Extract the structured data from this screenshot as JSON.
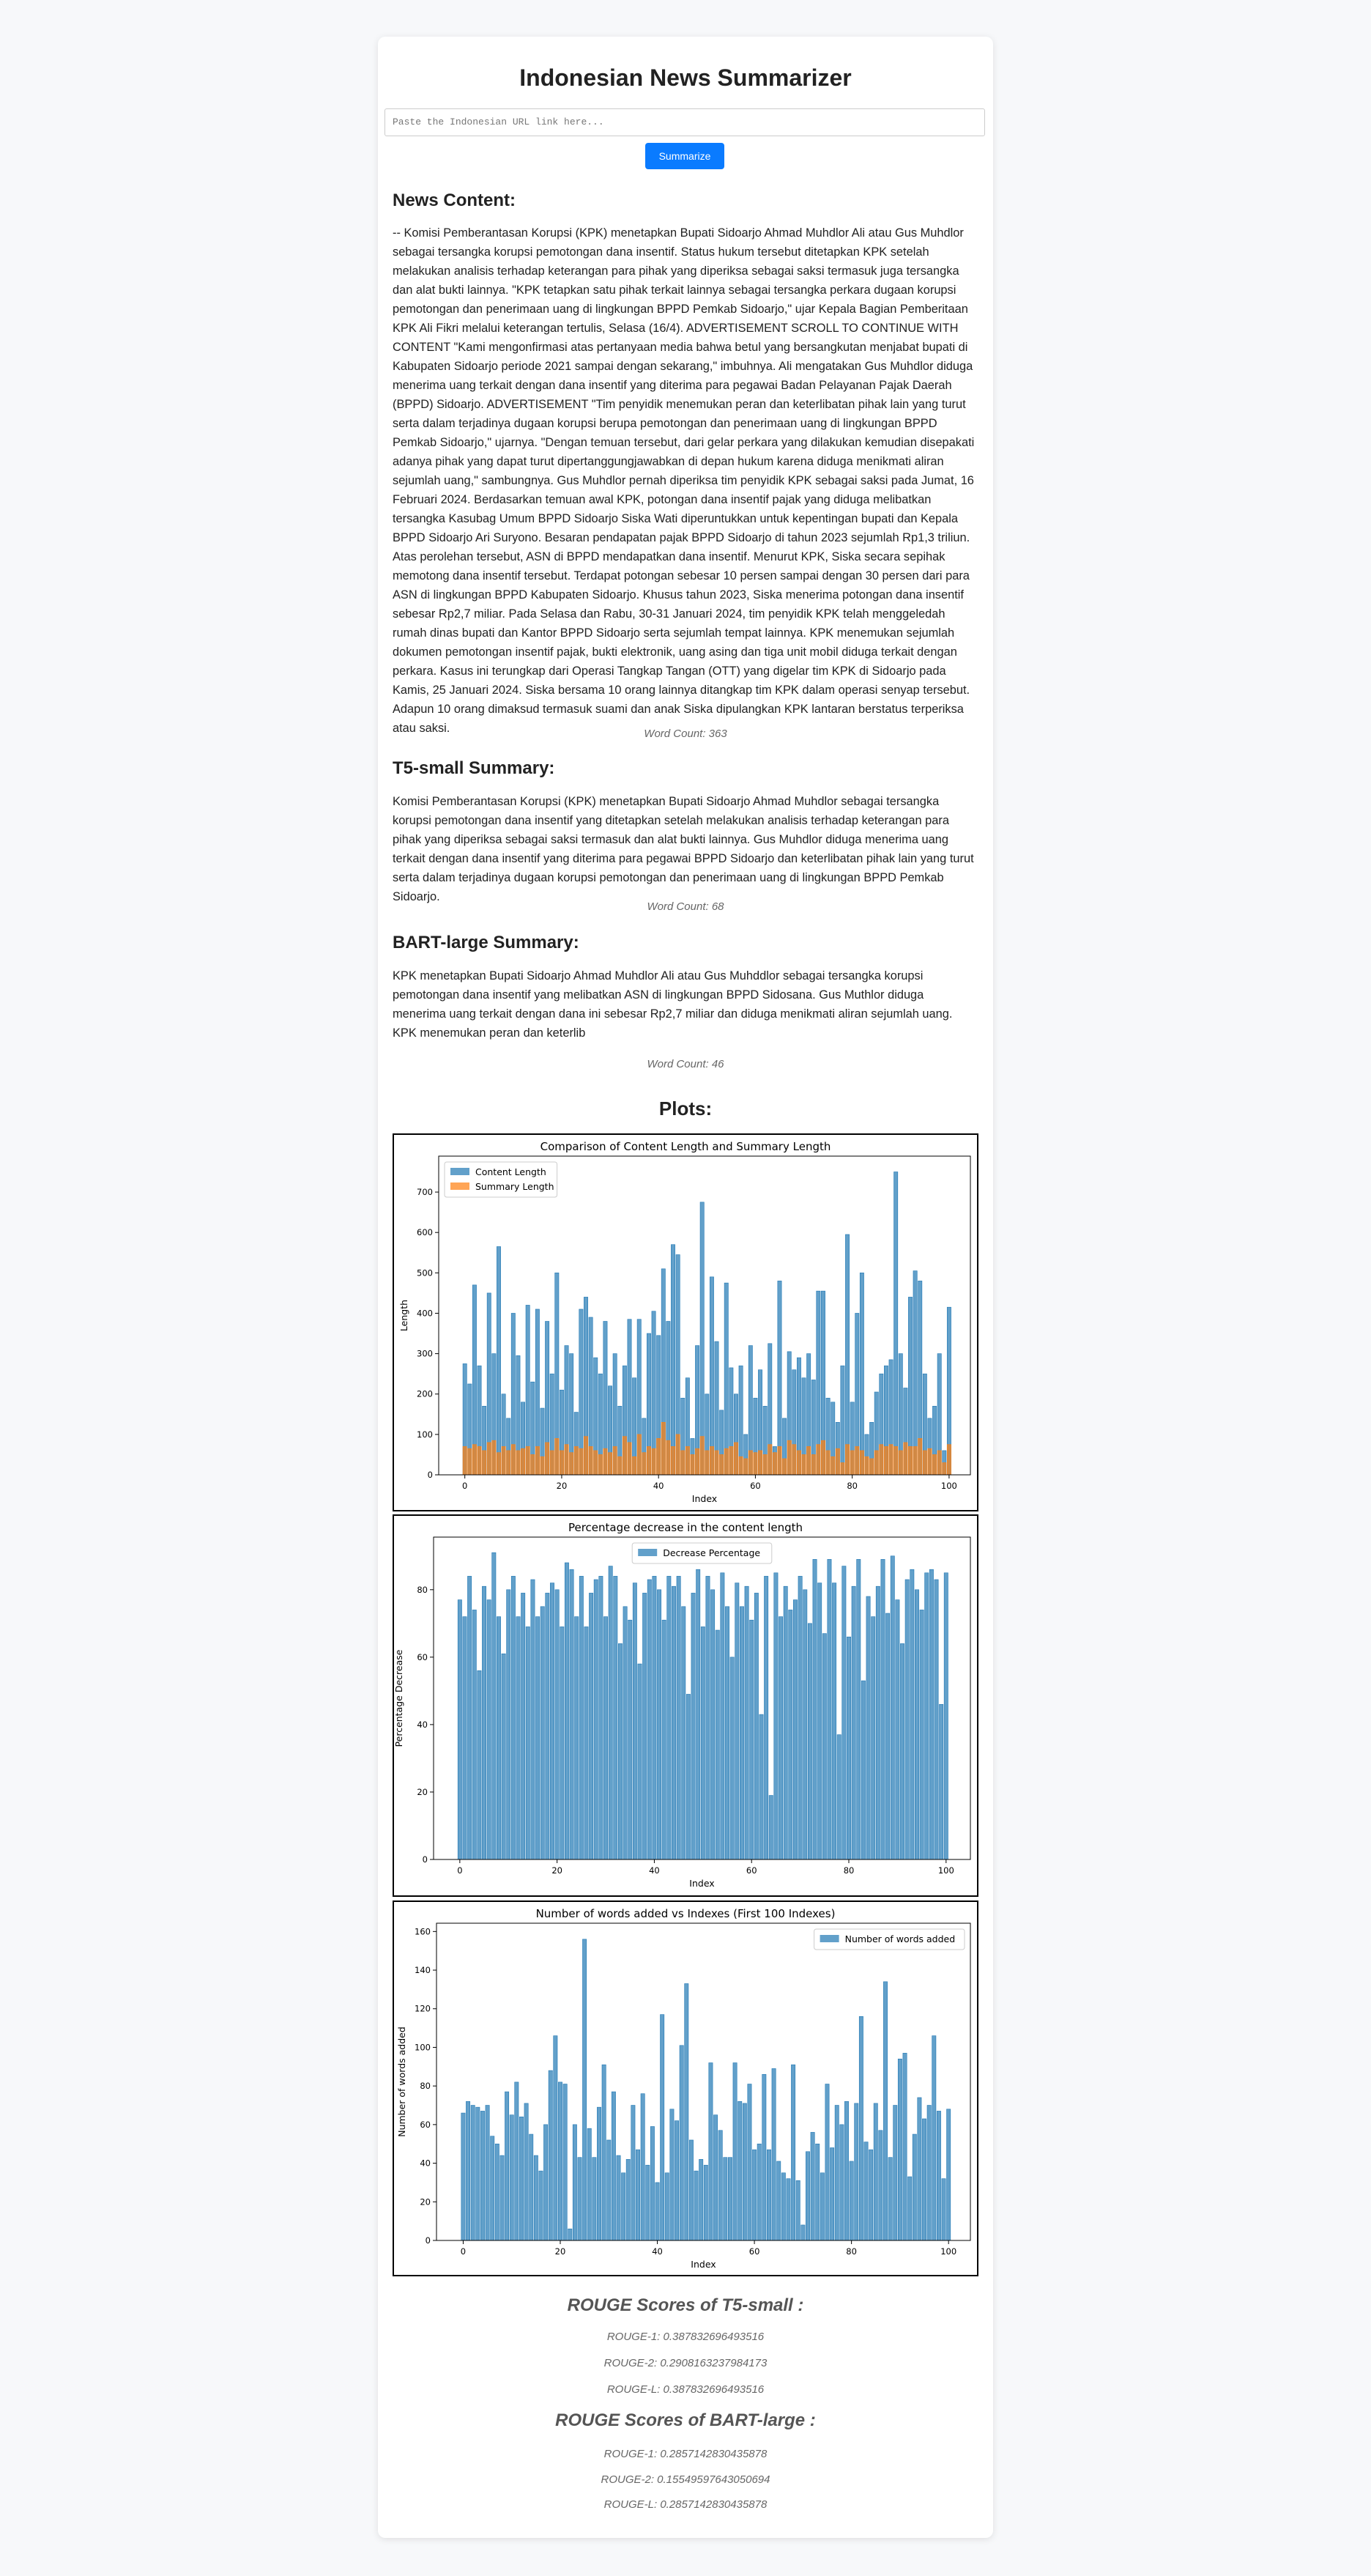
{
  "header": {
    "title": "Indonesian News Summarizer"
  },
  "input": {
    "placeholder": "Paste the Indonesian URL link here...",
    "button": "Summarize"
  },
  "sections": [
    {
      "heading": "News Content:",
      "text": "-- Komisi Pemberantasan Korupsi (KPK) menetapkan Bupati Sidoarjo Ahmad Muhdlor Ali atau Gus Muhdlor sebagai tersangka korupsi pemotongan dana insentif. Status hukum tersebut ditetapkan KPK setelah melakukan analisis terhadap keterangan para pihak yang diperiksa sebagai saksi termasuk juga tersangka dan alat bukti lainnya. \"KPK tetapkan satu pihak terkait lainnya sebagai tersangka perkara dugaan korupsi pemotongan dan penerimaan uang di lingkungan BPPD Pemkab Sidoarjo,\" ujar Kepala Bagian Pemberitaan KPK Ali Fikri melalui keterangan tertulis, Selasa (16/4). ADVERTISEMENT SCROLL TO CONTINUE WITH CONTENT \"Kami mengonfirmasi atas pertanyaan media bahwa betul yang bersangkutan menjabat bupati di Kabupaten Sidoarjo periode 2021 sampai dengan sekarang,\" imbuhnya. Ali mengatakan Gus Muhdlor diduga menerima uang terkait dengan dana insentif yang diterima para pegawai Badan Pelayanan Pajak Daerah (BPPD) Sidoarjo. ADVERTISEMENT \"Tim penyidik menemukan peran dan keterlibatan pihak lain yang turut serta dalam terjadinya dugaan korupsi berupa pemotongan dan penerimaan uang di lingkungan BPPD Pemkab Sidoarjo,\" ujarnya. \"Dengan temuan tersebut, dari gelar perkara yang dilakukan kemudian disepakati adanya pihak yang dapat turut dipertanggungjawabkan di depan hukum karena diduga menikmati aliran sejumlah uang,\" sambungnya. Gus Muhdlor pernah diperiksa tim penyidik KPK sebagai saksi pada Jumat, 16 Februari 2024. Berdasarkan temuan awal KPK, potongan dana insentif pajak yang diduga melibatkan tersangka Kasubag Umum BPPD Sidoarjo Siska Wati diperuntukkan untuk kepentingan bupati dan Kepala BPPD Sidoarjo Ari Suryono. Besaran pendapatan pajak BPPD Sidoarjo di tahun 2023 sejumlah Rp1,3 triliun. Atas perolehan tersebut, ASN di BPPD mendapatkan dana insentif. Menurut KPK, Siska secara sepihak memotong dana insentif tersebut. Terdapat potongan sebesar 10 persen sampai dengan 30 persen dari para ASN di lingkungan BPPD Kabupaten Sidoarjo. Khusus tahun 2023, Siska menerima potongan dana insentif sebesar Rp2,7 miliar. Pada Selasa dan Rabu, 30-31 Januari 2024, tim penyidik KPK telah menggeledah rumah dinas bupati dan Kantor BPPD Sidoarjo serta sejumlah tempat lainnya. KPK menemukan sejumlah dokumen pemotongan insentif pajak, bukti elektronik, uang asing dan tiga unit mobil diduga terkait dengan perkara. Kasus ini terungkap dari Operasi Tangkap Tangan (OTT) yang digelar tim KPK di Sidoarjo pada Kamis, 25 Januari 2024. Siska bersama 10 orang lainnya ditangkap tim KPK dalam operasi senyap tersebut. Adapun 10 orang dimaksud termasuk suami dan anak Siska dipulangkan KPK lantaran berstatus terperiksa atau saksi.",
      "word_count": "Word Count: 363"
    },
    {
      "heading": "T5-small Summary:",
      "text": "Komisi Pemberantasan Korupsi (KPK) menetapkan Bupati Sidoarjo Ahmad Muhdlor sebagai tersangka korupsi pemotongan dana insentif yang ditetapkan setelah melakukan analisis terhadap keterangan para pihak yang diperiksa sebagai saksi termasuk dan alat bukti lainnya. Gus Muhdlor diduga menerima uang terkait dengan dana insentif yang diterima para pegawai BPPD Sidoarjo dan keterlibatan pihak lain yang turut serta dalam terjadinya dugaan korupsi pemotongan dan penerimaan uang di lingkungan BPPD Pemkab Sidoarjo.",
      "word_count": "Word Count: 68"
    },
    {
      "heading": "BART-large Summary:",
      "text": "KPK menetapkan Bupati Sidoarjo Ahmad Muhdlor Ali atau Gus Muhddlor sebagai tersangka korupsi pemotongan dana insentif yang melibatkan ASN di lingkungan BPPD Sidosana. Gus Muthlor diduga menerima uang terkait dengan dana ini sebesar Rp2,7 miliar dan diduga menikmati aliran sejumlah uang. KPK menemukan peran dan keterlib",
      "word_count": "Word Count: 46"
    }
  ],
  "plots_heading": "Plots:",
  "chart_data": [
    {
      "type": "bar",
      "title": "Comparison of Content Length and Summary Length",
      "xlabel": "Index",
      "ylabel": "Length",
      "legend": "upper left",
      "x": [
        0,
        1,
        2,
        3,
        4,
        5,
        6,
        7,
        8,
        9,
        10,
        11,
        12,
        13,
        14,
        15,
        16,
        17,
        18,
        19,
        20,
        21,
        22,
        23,
        24,
        25,
        26,
        27,
        28,
        29,
        30,
        31,
        32,
        33,
        34,
        35,
        36,
        37,
        38,
        39,
        40,
        41,
        42,
        43,
        44,
        45,
        46,
        47,
        48,
        49,
        50,
        51,
        52,
        53,
        54,
        55,
        56,
        57,
        58,
        59,
        60,
        61,
        62,
        63,
        64,
        65,
        66,
        67,
        68,
        69,
        70,
        71,
        72,
        73,
        74,
        75,
        76,
        77,
        78,
        79,
        80,
        81,
        82,
        83,
        84,
        85,
        86,
        87,
        88,
        89,
        90,
        91,
        92,
        93,
        94,
        95,
        96,
        97,
        98,
        99,
        100
      ],
      "series": [
        {
          "name": "Content Length",
          "color": "#1f77b4",
          "values": [
            275,
            225,
            470,
            270,
            170,
            450,
            300,
            565,
            200,
            140,
            400,
            295,
            180,
            420,
            230,
            410,
            165,
            380,
            250,
            500,
            210,
            320,
            300,
            155,
            410,
            440,
            390,
            290,
            250,
            380,
            220,
            300,
            170,
            270,
            385,
            240,
            385,
            140,
            350,
            405,
            345,
            510,
            380,
            570,
            545,
            190,
            240,
            90,
            320,
            675,
            200,
            490,
            330,
            160,
            475,
            265,
            200,
            270,
            100,
            320,
            190,
            260,
            170,
            325,
            70,
            480,
            140,
            305,
            260,
            290,
            240,
            300,
            235,
            455,
            455,
            190,
            180,
            130,
            270,
            595,
            180,
            400,
            500,
            100,
            130,
            205,
            250,
            270,
            285,
            750,
            300,
            215,
            440,
            505,
            480,
            250,
            140,
            170,
            300,
            60,
            415
          ]
        },
        {
          "name": "Summary Length",
          "color": "#ff7f0e",
          "values": [
            70,
            65,
            75,
            70,
            60,
            80,
            85,
            55,
            70,
            60,
            75,
            60,
            65,
            70,
            50,
            70,
            45,
            80,
            60,
            90,
            60,
            75,
            55,
            70,
            65,
            95,
            70,
            60,
            50,
            65,
            55,
            70,
            45,
            95,
            80,
            45,
            100,
            55,
            70,
            65,
            90,
            130,
            85,
            70,
            100,
            60,
            70,
            50,
            65,
            95,
            60,
            70,
            60,
            50,
            65,
            70,
            80,
            45,
            40,
            60,
            55,
            60,
            50,
            75,
            55,
            70,
            40,
            85,
            75,
            60,
            50,
            70,
            50,
            75,
            85,
            60,
            45,
            65,
            30,
            75,
            60,
            70,
            60,
            45,
            40,
            60,
            75,
            70,
            75,
            70,
            60,
            80,
            70,
            70,
            90,
            60,
            65,
            50,
            60,
            30,
            75
          ]
        }
      ],
      "xlim": [
        -5.4,
        104.4
      ],
      "ylim": [
        0,
        789
      ],
      "xticks": [
        0,
        20,
        40,
        60,
        80,
        100
      ],
      "yticks": [
        0,
        100,
        200,
        300,
        400,
        500,
        600,
        700
      ]
    },
    {
      "type": "bar",
      "title": "Percentage decrease in the content length",
      "xlabel": "Index",
      "ylabel": "Percentage Decrease",
      "legend": "upper center",
      "x": [
        0,
        1,
        2,
        3,
        4,
        5,
        6,
        7,
        8,
        9,
        10,
        11,
        12,
        13,
        14,
        15,
        16,
        17,
        18,
        19,
        20,
        21,
        22,
        23,
        24,
        25,
        26,
        27,
        28,
        29,
        30,
        31,
        32,
        33,
        34,
        35,
        36,
        37,
        38,
        39,
        40,
        41,
        42,
        43,
        44,
        45,
        46,
        47,
        48,
        49,
        50,
        51,
        52,
        53,
        54,
        55,
        56,
        57,
        58,
        59,
        60,
        61,
        62,
        63,
        64,
        65,
        66,
        67,
        68,
        69,
        70,
        71,
        72,
        73,
        74,
        75,
        76,
        77,
        78,
        79,
        80,
        81,
        82,
        83,
        84,
        85,
        86,
        87,
        88,
        89,
        90,
        91,
        92,
        93,
        94,
        95,
        96,
        97,
        98,
        99,
        100
      ],
      "series": [
        {
          "name": "Decrease Percentage",
          "color": "#1f77b4",
          "values": [
            77,
            72,
            84,
            74,
            56,
            81,
            77,
            91,
            72,
            61,
            80,
            84,
            72,
            79,
            69,
            83,
            72,
            75,
            79,
            82,
            80,
            69,
            88,
            86,
            72,
            84,
            69,
            79,
            83,
            84,
            72,
            87,
            84,
            64,
            75,
            71,
            82,
            58,
            79,
            83,
            84,
            80,
            71,
            84,
            81,
            84,
            75,
            49,
            79,
            86,
            69,
            84,
            80,
            68,
            85,
            75,
            60,
            82,
            75,
            81,
            71,
            79,
            43,
            84,
            19,
            85,
            72,
            81,
            74,
            77,
            84,
            80,
            70,
            89,
            82,
            67,
            89,
            82,
            37,
            87,
            66,
            81,
            89,
            53,
            78,
            72,
            81,
            89,
            73,
            90,
            77,
            64,
            83,
            86,
            80,
            74,
            85,
            86,
            83,
            46,
            85
          ]
        }
      ],
      "xlim": [
        -5.4,
        105
      ],
      "ylim": [
        0,
        95.6
      ],
      "xticks": [
        0,
        20,
        40,
        60,
        80,
        100
      ],
      "yticks": [
        0,
        20,
        40,
        60,
        80
      ]
    },
    {
      "type": "bar",
      "title": "Number of words added vs Indexes (First 100 Indexes)",
      "xlabel": "Index",
      "ylabel": "Number of words added",
      "legend": "upper right",
      "x": [
        0,
        1,
        2,
        3,
        4,
        5,
        6,
        7,
        8,
        9,
        10,
        11,
        12,
        13,
        14,
        15,
        16,
        17,
        18,
        19,
        20,
        21,
        22,
        23,
        24,
        25,
        26,
        27,
        28,
        29,
        30,
        31,
        32,
        33,
        34,
        35,
        36,
        37,
        38,
        39,
        40,
        41,
        42,
        43,
        44,
        45,
        46,
        47,
        48,
        49,
        50,
        51,
        52,
        53,
        54,
        55,
        56,
        57,
        58,
        59,
        60,
        61,
        62,
        63,
        64,
        65,
        66,
        67,
        68,
        69,
        70,
        71,
        72,
        73,
        74,
        75,
        76,
        77,
        78,
        79,
        80,
        81,
        82,
        83,
        84,
        85,
        86,
        87,
        88,
        89,
        90,
        91,
        92,
        93,
        94,
        95,
        96,
        97,
        98,
        99,
        100
      ],
      "series": [
        {
          "name": "Number of words added",
          "color": "#1f77b4",
          "values": [
            66,
            72,
            70,
            69,
            67,
            70,
            54,
            50,
            44,
            77,
            65,
            82,
            64,
            71,
            55,
            44,
            36,
            60,
            88,
            106,
            82,
            81,
            6,
            60,
            43,
            156,
            58,
            43,
            69,
            91,
            52,
            77,
            44,
            35,
            42,
            70,
            47,
            76,
            39,
            59,
            30,
            117,
            35,
            68,
            62,
            101,
            133,
            52,
            36,
            42,
            39,
            92,
            65,
            57,
            43,
            43,
            92,
            72,
            71,
            81,
            47,
            50,
            86,
            47,
            89,
            41,
            35,
            32,
            91,
            31,
            8,
            46,
            56,
            50,
            35,
            81,
            48,
            70,
            60,
            72,
            41,
            71,
            116,
            51,
            47,
            71,
            57,
            134,
            43,
            70,
            94,
            97,
            33,
            55,
            74,
            63,
            70,
            106,
            67,
            32,
            68
          ]
        }
      ],
      "xlim": [
        -5.5,
        104.5
      ],
      "ylim": [
        0,
        164.3
      ],
      "xticks": [
        0,
        20,
        40,
        60,
        80,
        100
      ],
      "yticks": [
        0,
        20,
        40,
        60,
        80,
        100,
        120,
        140,
        160
      ]
    }
  ],
  "rouge": [
    {
      "title": "ROUGE Scores of T5-small :",
      "scores": [
        "ROUGE-1: 0.387832696493516",
        "ROUGE-2: 0.2908163237984173",
        "ROUGE-L: 0.387832696493516"
      ]
    },
    {
      "title": "ROUGE Scores of BART-large :",
      "scores": [
        "ROUGE-1: 0.2857142830435878",
        "ROUGE-2: 0.15549597643050694",
        "ROUGE-L: 0.2857142830435878"
      ]
    }
  ]
}
